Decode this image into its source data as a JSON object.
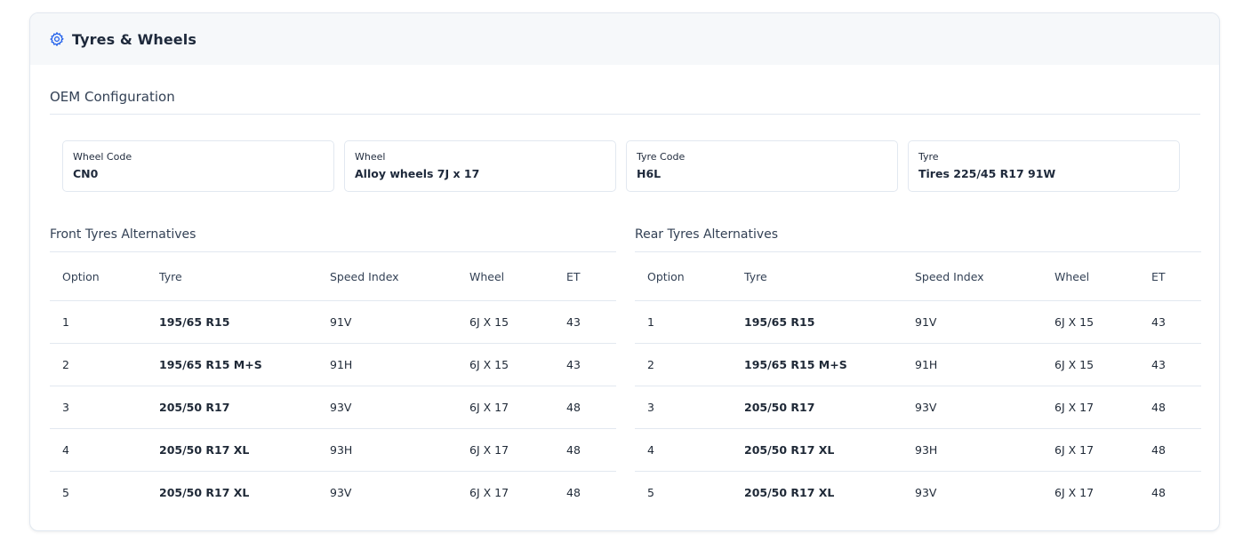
{
  "card": {
    "title": "Tyres & Wheels",
    "icon": "gear-icon",
    "accent": "#2563eb"
  },
  "oem": {
    "title": "OEM Configuration",
    "fields": [
      {
        "label": "Wheel Code",
        "value": "CN0"
      },
      {
        "label": "Wheel",
        "value": "Alloy wheels 7J x 17"
      },
      {
        "label": "Tyre Code",
        "value": "H6L"
      },
      {
        "label": "Tyre",
        "value": "Tires 225/45 R17 91W"
      }
    ]
  },
  "columns": [
    "Option",
    "Tyre",
    "Speed Index",
    "Wheel",
    "ET"
  ],
  "front": {
    "title": "Front Tyres Alternatives",
    "rows": [
      [
        "1",
        "195/65 R15",
        "91V",
        "6J X 15",
        "43"
      ],
      [
        "2",
        "195/65 R15 M+S",
        "91H",
        "6J X 15",
        "43"
      ],
      [
        "3",
        "205/50 R17",
        "93V",
        "6J X 17",
        "48"
      ],
      [
        "4",
        "205/50 R17 XL",
        "93H",
        "6J X 17",
        "48"
      ],
      [
        "5",
        "205/50 R17 XL",
        "93V",
        "6J X 17",
        "48"
      ]
    ]
  },
  "rear": {
    "title": "Rear Tyres Alternatives",
    "rows": [
      [
        "1",
        "195/65 R15",
        "91V",
        "6J X 15",
        "43"
      ],
      [
        "2",
        "195/65 R15 M+S",
        "91H",
        "6J X 15",
        "43"
      ],
      [
        "3",
        "205/50 R17",
        "93V",
        "6J X 17",
        "48"
      ],
      [
        "4",
        "205/50 R17 XL",
        "93H",
        "6J X 17",
        "48"
      ],
      [
        "5",
        "205/50 R17 XL",
        "93V",
        "6J X 17",
        "48"
      ]
    ]
  }
}
